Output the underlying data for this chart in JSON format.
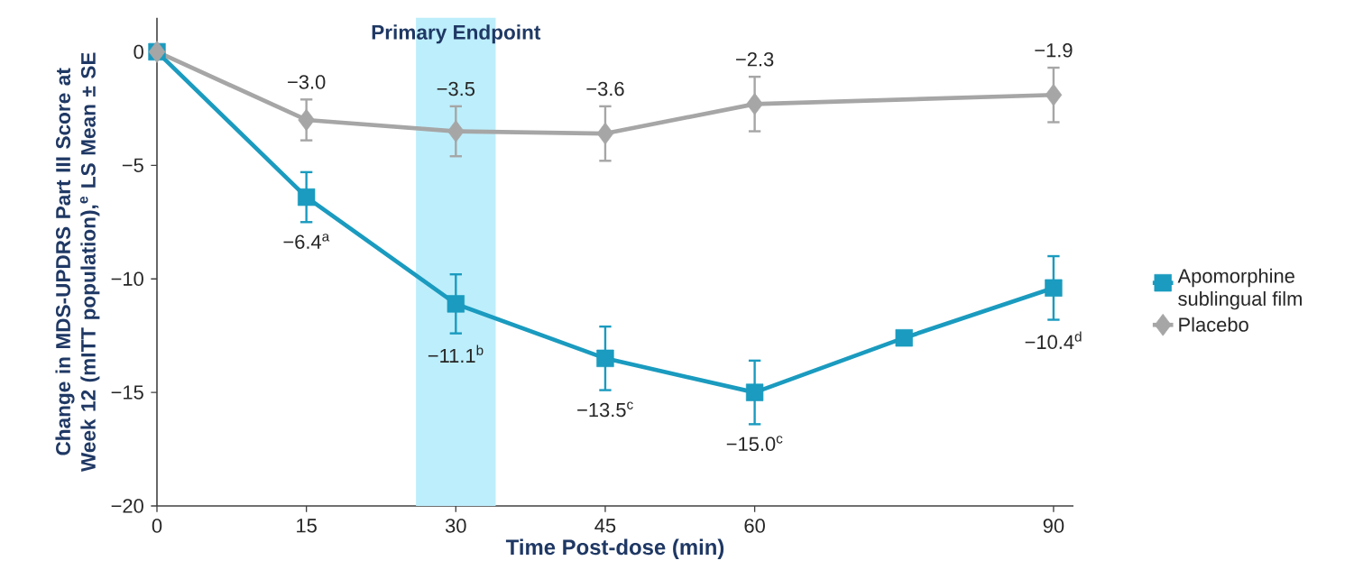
{
  "chart_data": {
    "type": "line",
    "xlabel": "Time Post-dose (min)",
    "ylabel": "Change in MDS-UPDRS Part III Score at Week 12 (mITT population),$^{e}$ LS Mean ± SE",
    "xlim": [
      0,
      92
    ],
    "xticks": [
      0,
      15,
      30,
      45,
      60,
      90
    ],
    "ylim": [
      -20,
      1.5
    ],
    "yticks": [
      {
        "value": -20,
        "label": "−20"
      },
      {
        "value": -15,
        "label": "−15"
      },
      {
        "value": -10,
        "label": "−10"
      },
      {
        "value": -5,
        "label": "−5"
      },
      0
    ],
    "legend": "right",
    "bands": [
      {
        "axis": "x",
        "from": 26,
        "to": 34,
        "label": "Primary Endpoint",
        "color": "#bdeefb"
      }
    ],
    "series": [
      {
        "name": "Apomorphine sublingual film",
        "color": "#1a9bbf",
        "marker": "square",
        "x": [
          0,
          15,
          30,
          45,
          60,
          75,
          90
        ],
        "values": [
          0,
          -6.4,
          -11.1,
          -13.5,
          -15.0,
          -12.6,
          -10.4
        ],
        "errors": [
          null,
          1.1,
          1.3,
          1.4,
          1.4,
          null,
          1.4
        ],
        "value_labels": [
          null,
          "−6.4$^{a}$",
          "−11.1$^{b}$",
          "−13.5$^{c}$",
          "−15.0$^{c}$",
          null,
          "−10.4$^{d}$"
        ]
      },
      {
        "name": "Placebo",
        "color": "#a6a6a6",
        "marker": "diamond",
        "x": [
          0,
          15,
          30,
          45,
          60,
          90
        ],
        "values": [
          0,
          -3.0,
          -3.5,
          -3.6,
          -2.3,
          -1.9
        ],
        "errors": [
          null,
          0.9,
          1.1,
          1.2,
          1.2,
          1.2
        ],
        "value_labels": [
          null,
          "−3.0",
          "−3.5",
          "−3.6",
          "−2.3",
          "−1.9"
        ]
      }
    ]
  }
}
